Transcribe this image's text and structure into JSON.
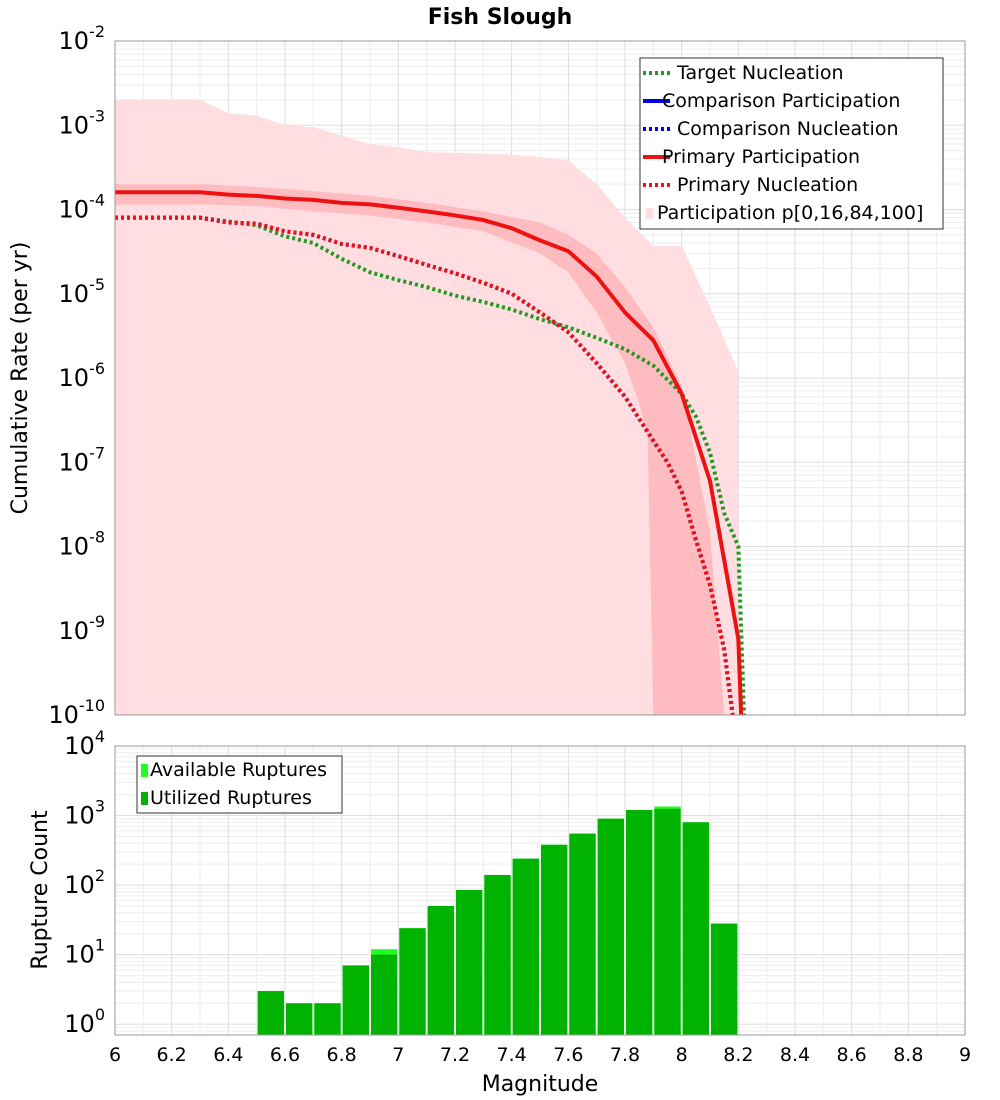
{
  "chart_data": [
    {
      "type": "line",
      "title": "Fish Slough",
      "xlabel": "",
      "ylabel": "Cumulative Rate (per yr)",
      "xlim": [
        6,
        9
      ],
      "ylim": [
        1e-10,
        0.01
      ],
      "yscale": "log",
      "grid": true,
      "legend_position": "top-right",
      "ytick_labels": [
        {
          "base": "10",
          "exp": "-10",
          "value": 1e-10
        },
        {
          "base": "10",
          "exp": "-9",
          "value": 1e-09
        },
        {
          "base": "10",
          "exp": "-8",
          "value": 1e-08
        },
        {
          "base": "10",
          "exp": "-7",
          "value": 1e-07
        },
        {
          "base": "10",
          "exp": "-6",
          "value": 1e-06
        },
        {
          "base": "10",
          "exp": "-5",
          "value": 1e-05
        },
        {
          "base": "10",
          "exp": "-4",
          "value": 0.0001
        },
        {
          "base": "10",
          "exp": "-3",
          "value": 0.001
        },
        {
          "base": "10",
          "exp": "-2",
          "value": 0.01
        }
      ],
      "bands": [
        {
          "name": "Participation p[0,16,84,100]",
          "kind": "outer",
          "color": "#ffdde0",
          "x": [
            6.0,
            6.3,
            6.4,
            6.5,
            6.6,
            6.7,
            6.8,
            6.9,
            7.0,
            7.1,
            7.2,
            7.3,
            7.4,
            7.5,
            7.6,
            7.7,
            7.8,
            7.9,
            8.0,
            8.1,
            8.2
          ],
          "upper": [
            0.002,
            0.002,
            0.0014,
            0.0013,
            0.001,
            0.00095,
            0.00075,
            0.0006,
            0.00055,
            0.00048,
            0.00047,
            0.00046,
            0.00045,
            0.00042,
            0.00038,
            0.0002,
            8e-05,
            3.7e-05,
            3.7e-05,
            7e-06,
            1.2e-06
          ],
          "lower_line": [
            [
              6.0,
              1e-10
            ],
            [
              7.93,
              1e-10
            ],
            [
              7.93,
              1e-10
            ]
          ],
          "right_edge": [
            [
              8.2,
              1.2e-06
            ],
            [
              8.2,
              1e-10
            ]
          ]
        },
        {
          "name": "Participation 16-84",
          "kind": "inner",
          "color": "#ffbcc0",
          "x": [
            6.0,
            6.3,
            6.5,
            6.7,
            6.9,
            7.1,
            7.3,
            7.5,
            7.6,
            7.7,
            7.8,
            7.9,
            8.0,
            8.1,
            8.15
          ],
          "upper": [
            0.0002,
            0.0002,
            0.000185,
            0.000165,
            0.000145,
            0.00012,
            9.5e-05,
            7e-05,
            5e-05,
            3e-05,
            1.2e-05,
            4e-06,
            8e-07,
            1.5e-08,
            1e-10
          ],
          "lower": [
            0.000115,
            0.000115,
            0.00011,
            9.5e-05,
            8.5e-05,
            7e-05,
            5.5e-05,
            3e-05,
            1.8e-05,
            6e-06,
            1.5e-06,
            5e-07,
            2e-07,
            1e-10,
            1e-10
          ],
          "lower_x": [
            6.0,
            6.3,
            6.5,
            6.7,
            6.9,
            7.1,
            7.3,
            7.5,
            7.6,
            7.7,
            7.8,
            7.85,
            7.88,
            7.9,
            8.15
          ]
        }
      ],
      "series": [
        {
          "name": "Target Nucleation",
          "style": "dotted",
          "color": "#229922",
          "x": [
            6.0,
            6.3,
            6.5,
            6.6,
            6.7,
            6.8,
            6.9,
            7.0,
            7.1,
            7.2,
            7.3,
            7.4,
            7.5,
            7.6,
            7.7,
            7.8,
            7.9,
            8.0,
            8.05,
            8.1,
            8.15,
            8.2,
            8.22
          ],
          "y": [
            8e-05,
            8e-05,
            6.5e-05,
            4.8e-05,
            4e-05,
            2.6e-05,
            1.8e-05,
            1.45e-05,
            1.2e-05,
            9.5e-06,
            8e-06,
            6.5e-06,
            5e-06,
            4e-06,
            3e-06,
            2.2e-06,
            1.4e-06,
            6.5e-07,
            3.5e-07,
            1.3e-07,
            2.5e-08,
            1e-08,
            1e-10
          ]
        },
        {
          "name": "Comparison Participation",
          "style": "solid",
          "color": "#0000ee",
          "x": [
            6.0,
            6.3,
            6.4,
            6.5,
            6.6,
            6.7,
            6.8,
            6.9,
            7.0,
            7.1,
            7.2,
            7.3,
            7.4,
            7.5,
            7.6,
            7.7,
            7.8,
            7.9,
            8.0,
            8.1,
            8.2,
            8.21
          ],
          "y": [
            0.00016,
            0.00016,
            0.00015,
            0.000145,
            0.000135,
            0.00013,
            0.00012,
            0.000115,
            0.000105,
            9.5e-05,
            8.5e-05,
            7.5e-05,
            6e-05,
            4.3e-05,
            3.2e-05,
            1.6e-05,
            6e-06,
            2.8e-06,
            6.5e-07,
            6e-08,
            8e-10,
            1e-10
          ]
        },
        {
          "name": "Comparison Nucleation",
          "style": "dotted",
          "color": "#0000ee",
          "x": [
            6.0,
            6.3,
            6.4,
            6.5,
            6.6,
            6.7,
            6.8,
            6.9,
            7.0,
            7.1,
            7.2,
            7.3,
            7.4,
            7.5,
            7.6,
            7.7,
            7.8,
            7.9,
            7.95,
            8.0,
            8.05,
            8.1,
            8.15,
            8.18
          ],
          "y": [
            8e-05,
            8e-05,
            7e-05,
            6.8e-05,
            5.5e-05,
            5e-05,
            3.9e-05,
            3.5e-05,
            2.8e-05,
            2.2e-05,
            1.75e-05,
            1.35e-05,
            1e-05,
            6e-06,
            3.5e-06,
            1.5e-06,
            6e-07,
            1.8e-07,
            1e-07,
            4.5e-08,
            1.2e-08,
            3.5e-09,
            6e-10,
            1e-10
          ]
        },
        {
          "name": "Primary Participation",
          "style": "solid",
          "color": "#ee1111",
          "x": [
            6.0,
            6.3,
            6.4,
            6.5,
            6.6,
            6.7,
            6.8,
            6.9,
            7.0,
            7.1,
            7.2,
            7.3,
            7.4,
            7.5,
            7.6,
            7.7,
            7.8,
            7.9,
            8.0,
            8.1,
            8.2,
            8.21
          ],
          "y": [
            0.00016,
            0.00016,
            0.00015,
            0.000145,
            0.000135,
            0.00013,
            0.00012,
            0.000115,
            0.000105,
            9.5e-05,
            8.5e-05,
            7.5e-05,
            6e-05,
            4.3e-05,
            3.2e-05,
            1.6e-05,
            6e-06,
            2.8e-06,
            6.5e-07,
            6e-08,
            8e-10,
            1e-10
          ]
        },
        {
          "name": "Primary Nucleation",
          "style": "dotted",
          "color": "#ee1111",
          "x": [
            6.0,
            6.3,
            6.4,
            6.5,
            6.6,
            6.7,
            6.8,
            6.9,
            7.0,
            7.1,
            7.2,
            7.3,
            7.4,
            7.5,
            7.6,
            7.7,
            7.8,
            7.9,
            7.95,
            8.0,
            8.05,
            8.1,
            8.15,
            8.18
          ],
          "y": [
            8e-05,
            8e-05,
            7e-05,
            6.8e-05,
            5.5e-05,
            5e-05,
            3.9e-05,
            3.5e-05,
            2.8e-05,
            2.2e-05,
            1.75e-05,
            1.35e-05,
            1e-05,
            6e-06,
            3.5e-06,
            1.5e-06,
            6e-07,
            1.8e-07,
            1e-07,
            4.5e-08,
            1.2e-08,
            3.5e-09,
            6e-10,
            1e-10
          ]
        }
      ],
      "legend": [
        {
          "label": "Target Nucleation",
          "style": "dotted",
          "color": "#229922"
        },
        {
          "label": "Comparison Participation",
          "style": "solid",
          "color": "#0000ee"
        },
        {
          "label": "Comparison Nucleation",
          "style": "dotted",
          "color": "#0000ee"
        },
        {
          "label": "Primary Participation",
          "style": "solid",
          "color": "#ee1111"
        },
        {
          "label": "Primary Nucleation",
          "style": "dotted",
          "color": "#ee1111"
        },
        {
          "label": "Participation p[0,16,84,100]",
          "style": "patch",
          "color": "#ffdde0"
        }
      ]
    },
    {
      "type": "bar",
      "title": "",
      "xlabel": "Magnitude",
      "ylabel": "Rupture Count",
      "xlim": [
        6,
        9
      ],
      "ylim": [
        0.7,
        10000
      ],
      "yscale": "log",
      "grid": true,
      "legend_position": "top-left",
      "ytick_labels": [
        {
          "base": "10",
          "exp": "0",
          "value": 1
        },
        {
          "base": "10",
          "exp": "1",
          "value": 10
        },
        {
          "base": "10",
          "exp": "2",
          "value": 100
        },
        {
          "base": "10",
          "exp": "3",
          "value": 1000
        },
        {
          "base": "10",
          "exp": "4",
          "value": 10000
        }
      ],
      "xtick_labels": [
        "6",
        "6.2",
        "6.4",
        "6.6",
        "6.8",
        "7",
        "7.2",
        "7.4",
        "7.6",
        "7.8",
        "8",
        "8.2",
        "8.4",
        "8.6",
        "8.8",
        "9"
      ],
      "xtick_values": [
        6,
        6.2,
        6.4,
        6.6,
        6.8,
        7,
        7.2,
        7.4,
        7.6,
        7.8,
        8,
        8.2,
        8.4,
        8.6,
        8.8,
        9
      ],
      "bin_width": 0.1,
      "bin_centers": [
        6.55,
        6.65,
        6.75,
        6.85,
        6.95,
        7.05,
        7.15,
        7.25,
        7.35,
        7.45,
        7.55,
        7.65,
        7.75,
        7.85,
        7.95,
        8.05,
        8.15
      ],
      "series": [
        {
          "name": "Available Ruptures",
          "color": "#22ff22",
          "values": [
            3,
            2,
            2,
            7,
            12,
            24,
            50,
            85,
            140,
            240,
            380,
            550,
            900,
            1200,
            1350,
            800,
            28
          ]
        },
        {
          "name": "Utilized Ruptures",
          "color": "#00b300",
          "values": [
            3,
            2,
            2,
            7,
            10,
            24,
            50,
            85,
            140,
            240,
            380,
            550,
            900,
            1200,
            1250,
            800,
            28
          ]
        }
      ],
      "legend": [
        {
          "label": "Available Ruptures",
          "color": "#22ff22"
        },
        {
          "label": "Utilized Ruptures",
          "color": "#00b300"
        }
      ]
    }
  ]
}
